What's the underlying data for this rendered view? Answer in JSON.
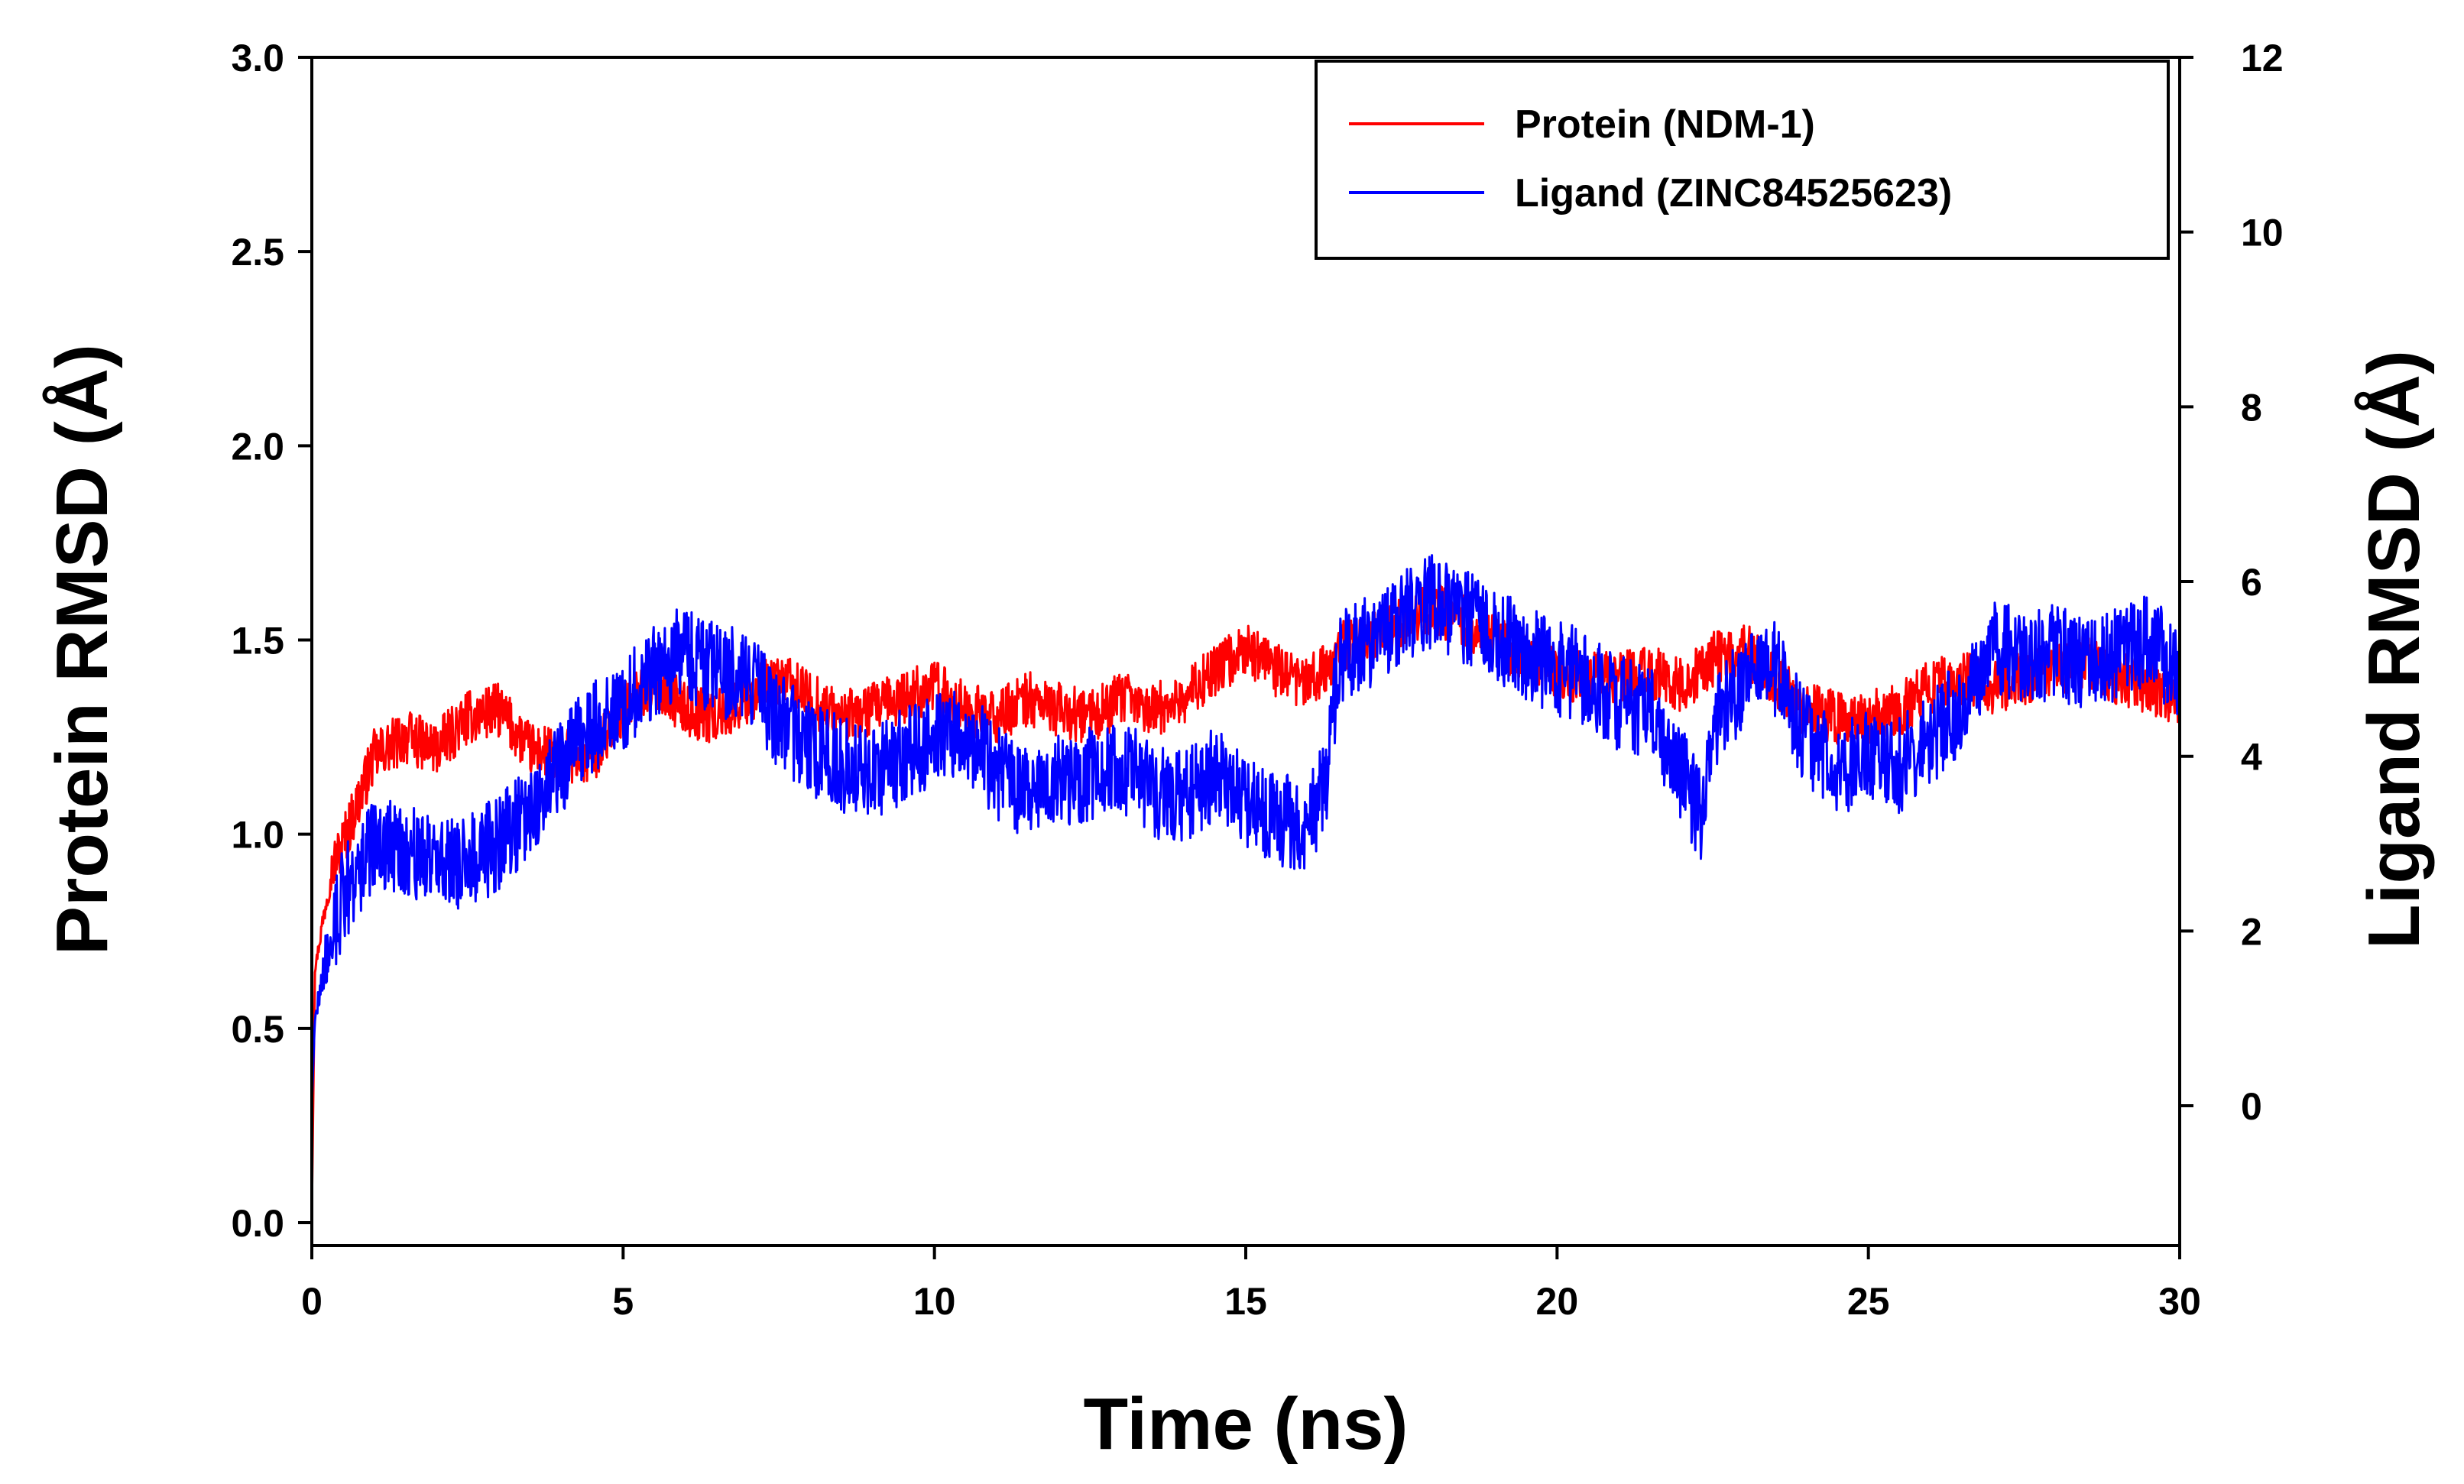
{
  "chart_data": {
    "type": "line",
    "title": "",
    "xlabel": "Time (ns)",
    "ylabel": "Protein RMSD (Å)",
    "y2label": "Ligand RMSD (Å)",
    "xlim": [
      0,
      30
    ],
    "ylim": [
      0,
      3.0
    ],
    "y2lim": [
      -1.6,
      12
    ],
    "x_ticks": [
      0,
      5,
      10,
      15,
      20,
      25,
      30
    ],
    "x_tick_labels": [
      "0",
      "5",
      "10",
      "15",
      "20",
      "25",
      "30"
    ],
    "y_ticks": [
      0,
      0.5,
      1.0,
      1.5,
      2.0,
      2.5,
      3.0
    ],
    "y_tick_labels": [
      "0.0",
      "0.5",
      "1.0",
      "1.5",
      "2.0",
      "2.5",
      "3.0"
    ],
    "y2_ticks": [
      0,
      2,
      4,
      6,
      8,
      10,
      12
    ],
    "y2_tick_labels": [
      "0",
      "2",
      "4",
      "6",
      "8",
      "10",
      "12"
    ],
    "grid": false,
    "legend": "top-right",
    "noise_note": "Both traces fluctuate rapidly; values below are the trend read off the figure, the page adds small deterministic jitter of the given amplitude.",
    "series": [
      {
        "name": "Protein (NDM-1)",
        "color": "#ff0000",
        "axis": "left",
        "noise": 0.07,
        "x": [
          0,
          0.05,
          0.3,
          0.6,
          1.0,
          1.5,
          2.0,
          2.5,
          3.0,
          3.5,
          4.0,
          4.5,
          5.0,
          5.5,
          6.0,
          6.5,
          7.0,
          7.5,
          8.0,
          8.5,
          9.0,
          9.5,
          10.0,
          10.5,
          11.0,
          11.5,
          12.0,
          12.5,
          13.0,
          13.5,
          14.0,
          14.5,
          15.0,
          15.5,
          16.0,
          16.5,
          17.0,
          17.5,
          18.0,
          18.5,
          19.0,
          19.5,
          20.0,
          20.5,
          21.0,
          21.5,
          22.0,
          22.5,
          23.0,
          23.5,
          24.0,
          24.5,
          25.0,
          25.5,
          26.0,
          26.5,
          27.0,
          27.5,
          28.0,
          28.5,
          29.0,
          29.5,
          30.0
        ],
        "values": [
          0.02,
          0.65,
          0.9,
          1.02,
          1.2,
          1.25,
          1.22,
          1.3,
          1.32,
          1.22,
          1.2,
          1.2,
          1.32,
          1.4,
          1.32,
          1.3,
          1.35,
          1.4,
          1.35,
          1.3,
          1.32,
          1.35,
          1.38,
          1.32,
          1.3,
          1.35,
          1.32,
          1.3,
          1.35,
          1.32,
          1.35,
          1.42,
          1.48,
          1.42,
          1.38,
          1.48,
          1.5,
          1.55,
          1.58,
          1.55,
          1.5,
          1.45,
          1.42,
          1.4,
          1.4,
          1.42,
          1.38,
          1.45,
          1.48,
          1.4,
          1.32,
          1.3,
          1.3,
          1.32,
          1.38,
          1.4,
          1.38,
          1.4,
          1.42,
          1.45,
          1.4,
          1.38,
          1.35
        ]
      },
      {
        "name": "Ligand (ZINC84525623)",
        "color": "#0000ff",
        "axis": "right",
        "noise": 0.55,
        "x": [
          0,
          0.05,
          0.2,
          0.5,
          1.0,
          1.5,
          2.0,
          2.5,
          3.0,
          3.5,
          4.0,
          4.5,
          5.0,
          5.5,
          6.0,
          6.5,
          7.0,
          7.5,
          8.0,
          8.5,
          9.0,
          9.5,
          10.0,
          10.5,
          11.0,
          11.5,
          12.0,
          12.5,
          13.0,
          13.5,
          14.0,
          14.5,
          15.0,
          15.5,
          16.0,
          16.3,
          16.5,
          17.0,
          17.5,
          18.0,
          18.5,
          19.0,
          19.5,
          20.0,
          20.5,
          21.0,
          21.5,
          22.0,
          22.3,
          22.5,
          23.0,
          23.5,
          24.0,
          24.5,
          25.0,
          25.5,
          26.0,
          26.5,
          27.0,
          27.5,
          28.0,
          28.5,
          29.0,
          29.5,
          30.0
        ],
        "values": [
          0.0,
          1.0,
          1.6,
          2.4,
          3.0,
          2.9,
          2.8,
          2.8,
          3.0,
          3.4,
          3.9,
          4.3,
          4.6,
          5.0,
          5.2,
          5.0,
          4.9,
          4.4,
          4.1,
          3.9,
          3.8,
          4.0,
          4.2,
          4.3,
          3.8,
          3.6,
          3.7,
          3.8,
          3.9,
          3.6,
          3.5,
          3.8,
          3.5,
          3.3,
          3.2,
          3.8,
          5.1,
          5.3,
          5.6,
          5.8,
          5.6,
          5.4,
          5.2,
          5.0,
          4.9,
          4.6,
          4.5,
          3.8,
          3.3,
          4.3,
          4.9,
          5.0,
          4.2,
          3.8,
          4.0,
          3.9,
          4.2,
          4.6,
          5.3,
          5.1,
          5.2,
          5.0,
          5.2,
          5.3,
          5.0
        ]
      }
    ]
  }
}
